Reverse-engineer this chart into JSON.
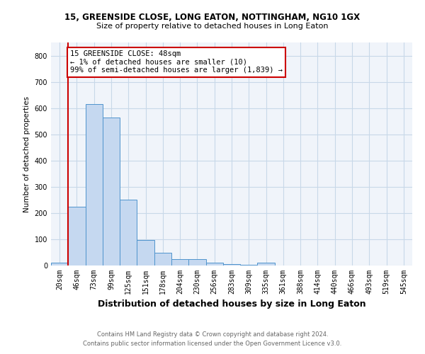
{
  "title_line1": "15, GREENSIDE CLOSE, LONG EATON, NOTTINGHAM, NG10 1GX",
  "title_line2": "Size of property relative to detached houses in Long Eaton",
  "xlabel": "Distribution of detached houses by size in Long Eaton",
  "ylabel": "Number of detached properties",
  "footnote1": "Contains HM Land Registry data © Crown copyright and database right 2024.",
  "footnote2": "Contains public sector information licensed under the Open Government Licence v3.0.",
  "bar_labels": [
    "20sqm",
    "46sqm",
    "73sqm",
    "99sqm",
    "125sqm",
    "151sqm",
    "178sqm",
    "204sqm",
    "230sqm",
    "256sqm",
    "283sqm",
    "309sqm",
    "335sqm",
    "361sqm",
    "388sqm",
    "414sqm",
    "440sqm",
    "466sqm",
    "493sqm",
    "519sqm",
    "545sqm"
  ],
  "bar_values": [
    10,
    225,
    615,
    565,
    252,
    97,
    48,
    23,
    23,
    10,
    6,
    4,
    10,
    0,
    0,
    0,
    0,
    0,
    0,
    0,
    0
  ],
  "bar_color": "#c5d8f0",
  "bar_edge_color": "#4f94cd",
  "vline_color": "#cc0000",
  "annotation_line1": "15 GREENSIDE CLOSE: 48sqm",
  "annotation_line2": "← 1% of detached houses are smaller (10)",
  "annotation_line3": "99% of semi-detached houses are larger (1,839) →",
  "annotation_box_color": "#ffffff",
  "annotation_box_edge": "#cc0000",
  "ylim": [
    0,
    850
  ],
  "yticks": [
    0,
    100,
    200,
    300,
    400,
    500,
    600,
    700,
    800
  ],
  "grid_color": "#c8d8e8",
  "bg_color": "#f0f4fa",
  "title1_fontsize": 8.5,
  "title2_fontsize": 8,
  "ylabel_fontsize": 7.5,
  "xlabel_fontsize": 9,
  "tick_fontsize": 7,
  "annot_fontsize": 7.5,
  "footnote_fontsize": 6
}
